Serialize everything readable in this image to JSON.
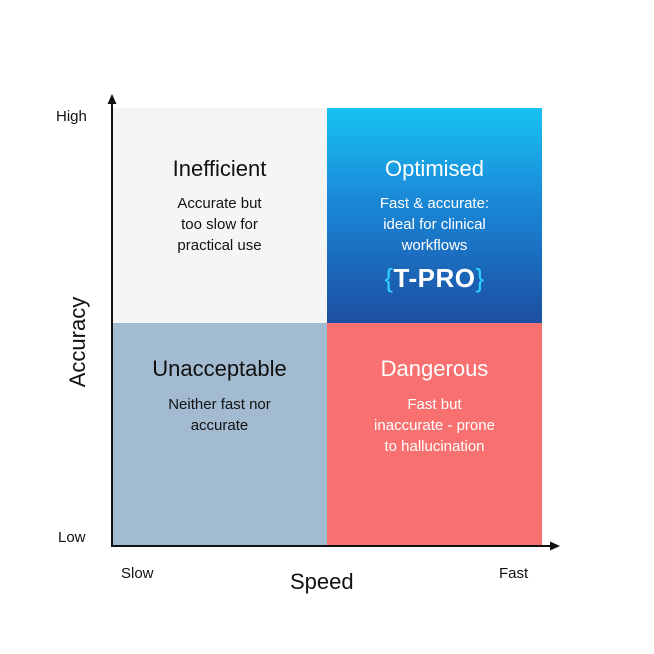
{
  "axes": {
    "y_label": "Accuracy",
    "x_label": "Speed",
    "y_high": "High",
    "y_low": "Low",
    "x_low": "Slow",
    "x_high": "Fast"
  },
  "quadrants": {
    "top_left": {
      "title": "Inefficient",
      "description": "Accurate but\ntoo slow for\npractical use"
    },
    "top_right": {
      "title": "Optimised",
      "description": "Fast & accurate:\nideal for clinical\nworkflows"
    },
    "bottom_left": {
      "title": "Unacceptable",
      "description": "Neither fast nor\naccurate"
    },
    "bottom_right": {
      "title": "Dangerous",
      "description": "Fast but\ninaccurate - prone\nto hallucination"
    }
  },
  "brand": {
    "open": "{",
    "name": "T-PRO",
    "close": "}"
  },
  "colors": {
    "top_left": "#f5f5f5",
    "top_right_top": "#18c2f2",
    "top_right_bottom": "#1c4ea1",
    "bottom_left": "#a2bbd1",
    "bottom_right": "#f97070",
    "axis": "#111111"
  }
}
